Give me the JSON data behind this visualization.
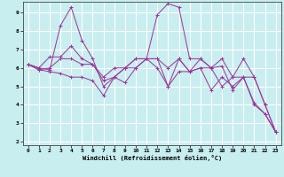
{
  "xlabel": "Windchill (Refroidissement éolien,°C)",
  "bg_color": "#c8eef0",
  "grid_color": "#ffffff",
  "line_color": "#993399",
  "xlim": [
    -0.5,
    23.5
  ],
  "ylim": [
    1.8,
    9.6
  ],
  "xticks": [
    0,
    1,
    2,
    3,
    4,
    5,
    6,
    7,
    8,
    9,
    10,
    11,
    12,
    13,
    14,
    15,
    16,
    17,
    18,
    19,
    20,
    21,
    22,
    23
  ],
  "yticks": [
    2,
    3,
    4,
    5,
    6,
    7,
    8,
    9
  ],
  "series": [
    [
      6.2,
      6.0,
      5.9,
      8.3,
      9.3,
      7.5,
      6.5,
      5.0,
      5.5,
      5.2,
      6.0,
      6.5,
      6.5,
      5.0,
      6.5,
      5.8,
      6.5,
      6.0,
      6.1,
      4.8,
      5.5,
      4.1,
      3.5,
      2.5
    ],
    [
      6.2,
      6.0,
      6.6,
      6.6,
      7.2,
      6.5,
      6.2,
      5.5,
      6.0,
      6.0,
      6.5,
      6.5,
      8.9,
      9.5,
      9.3,
      6.5,
      6.5,
      6.0,
      6.5,
      5.5,
      6.5,
      5.5,
      4.0,
      2.5
    ],
    [
      6.2,
      5.9,
      6.0,
      6.5,
      6.5,
      6.2,
      6.2,
      5.3,
      5.5,
      6.0,
      6.5,
      6.5,
      6.5,
      6.0,
      6.5,
      5.8,
      6.0,
      4.8,
      5.5,
      5.0,
      5.5,
      5.5,
      4.0,
      2.5
    ],
    [
      6.2,
      5.9,
      5.8,
      5.7,
      5.5,
      5.5,
      5.3,
      4.5,
      5.5,
      6.0,
      6.0,
      6.5,
      6.0,
      5.0,
      5.8,
      5.8,
      6.0,
      6.0,
      5.0,
      5.5,
      5.5,
      4.0,
      3.5,
      2.5
    ]
  ]
}
